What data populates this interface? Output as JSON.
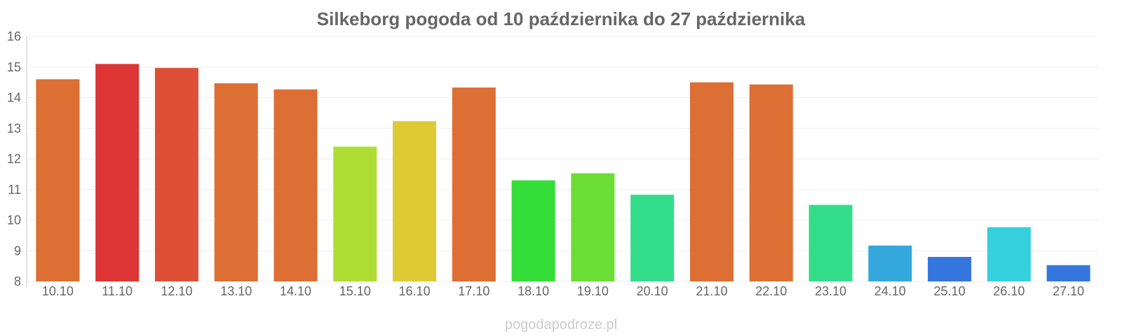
{
  "chart_data": {
    "type": "bar",
    "title": "Silkeborg pogoda od 10 października do 27 października",
    "xlabel": "",
    "ylabel": "",
    "ylim": [
      8,
      16
    ],
    "yticks": [
      8,
      9,
      10,
      11,
      12,
      13,
      14,
      15,
      16
    ],
    "grid": true,
    "categories": [
      "10.10",
      "11.10",
      "12.10",
      "13.10",
      "14.10",
      "15.10",
      "16.10",
      "17.10",
      "18.10",
      "19.10",
      "20.10",
      "21.10",
      "22.10",
      "23.10",
      "24.10",
      "25.10",
      "26.10",
      "27.10"
    ],
    "values": [
      14.6,
      15.1,
      14.97,
      14.47,
      14.27,
      12.4,
      13.23,
      14.33,
      11.3,
      11.53,
      10.83,
      14.5,
      14.43,
      10.5,
      9.17,
      8.8,
      9.77,
      8.53
    ],
    "colors": [
      "#dd6e34",
      "#dd3535",
      "#dd5035",
      "#dd6e34",
      "#dd6e34",
      "#aedd34",
      "#ddca34",
      "#dd6e34",
      "#34dd38",
      "#6bdd34",
      "#34dd8a",
      "#dd6e34",
      "#dd6e34",
      "#34dd8a",
      "#34a8dd",
      "#3476dd",
      "#34d0dd",
      "#3476dd"
    ]
  },
  "watermark": "pogodapodroze.pl"
}
